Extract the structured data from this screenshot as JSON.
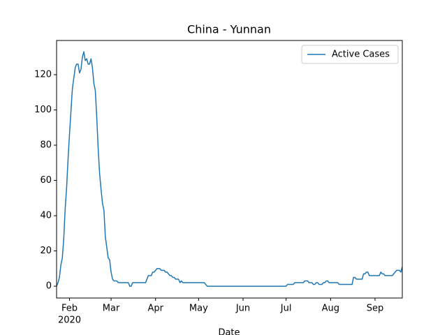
{
  "chart_data": {
    "type": "line",
    "title": "China - Yunnan",
    "xlabel": "Date",
    "xtick_sublabel": "2020",
    "series": [
      {
        "name": "Active Cases",
        "color": "#1f77b4",
        "values": [
          0,
          2,
          5,
          12,
          16,
          27,
          44,
          56,
          72,
          86,
          99,
          112,
          118,
          124,
          126,
          126,
          121,
          123,
          130,
          133,
          128,
          129,
          126,
          126,
          129,
          124,
          115,
          111,
          96,
          78,
          64,
          55,
          47,
          43,
          28,
          22,
          16,
          15,
          8,
          4,
          3,
          3,
          3,
          2,
          2,
          2,
          2,
          2,
          2,
          2,
          2,
          0,
          0,
          2,
          2,
          2,
          2,
          2,
          2,
          2,
          2,
          2,
          2,
          4,
          6,
          6,
          6,
          8,
          8,
          9,
          10,
          10,
          10,
          9,
          9,
          9,
          8,
          8,
          7,
          6,
          6,
          5,
          5,
          4,
          4,
          4,
          2,
          3,
          2,
          2,
          2,
          2,
          2,
          2,
          2,
          2,
          2,
          2,
          2,
          2,
          2,
          2,
          2,
          2,
          1,
          0,
          0,
          0,
          0,
          0,
          0,
          0,
          0,
          0,
          0,
          0,
          0,
          0,
          0,
          0,
          0,
          0,
          0,
          0,
          0,
          0,
          0,
          0,
          0,
          0,
          0,
          0,
          0,
          0,
          0,
          0,
          0,
          0,
          0,
          0,
          0,
          0,
          0,
          0,
          0,
          0,
          0,
          0,
          0,
          0,
          0,
          0,
          0,
          0,
          0,
          0,
          0,
          0,
          0,
          0,
          0,
          1,
          1,
          1,
          1,
          1,
          2,
          2,
          2,
          2,
          2,
          2,
          2,
          3,
          3,
          3,
          2,
          2,
          2,
          1,
          1,
          2,
          2,
          1,
          1,
          1,
          2,
          2,
          3,
          3,
          2,
          2,
          2,
          2,
          2,
          2,
          2,
          1,
          1,
          1,
          1,
          1,
          1,
          1,
          1,
          1,
          1,
          5,
          5,
          4,
          4,
          4,
          4,
          4,
          7,
          7,
          8,
          8,
          6,
          6,
          6,
          6,
          6,
          6,
          6,
          6,
          8,
          7,
          7,
          6,
          6,
          6,
          6,
          6,
          6,
          7,
          8,
          9,
          9,
          9,
          8,
          11
        ]
      }
    ],
    "xlim": [
      0,
      241
    ],
    "xticks": [
      {
        "value": 9,
        "label": "Feb"
      },
      {
        "value": 38,
        "label": "Mar"
      },
      {
        "value": 69,
        "label": "Apr"
      },
      {
        "value": 99,
        "label": "May"
      },
      {
        "value": 130,
        "label": "Jun"
      },
      {
        "value": 160,
        "label": "Jul"
      },
      {
        "value": 191,
        "label": "Aug"
      },
      {
        "value": 222,
        "label": "Sep"
      }
    ],
    "ylim": [
      -6.7,
      139.4
    ],
    "yticks": [
      0,
      20,
      40,
      60,
      80,
      100,
      120
    ],
    "legend": "upper right"
  }
}
